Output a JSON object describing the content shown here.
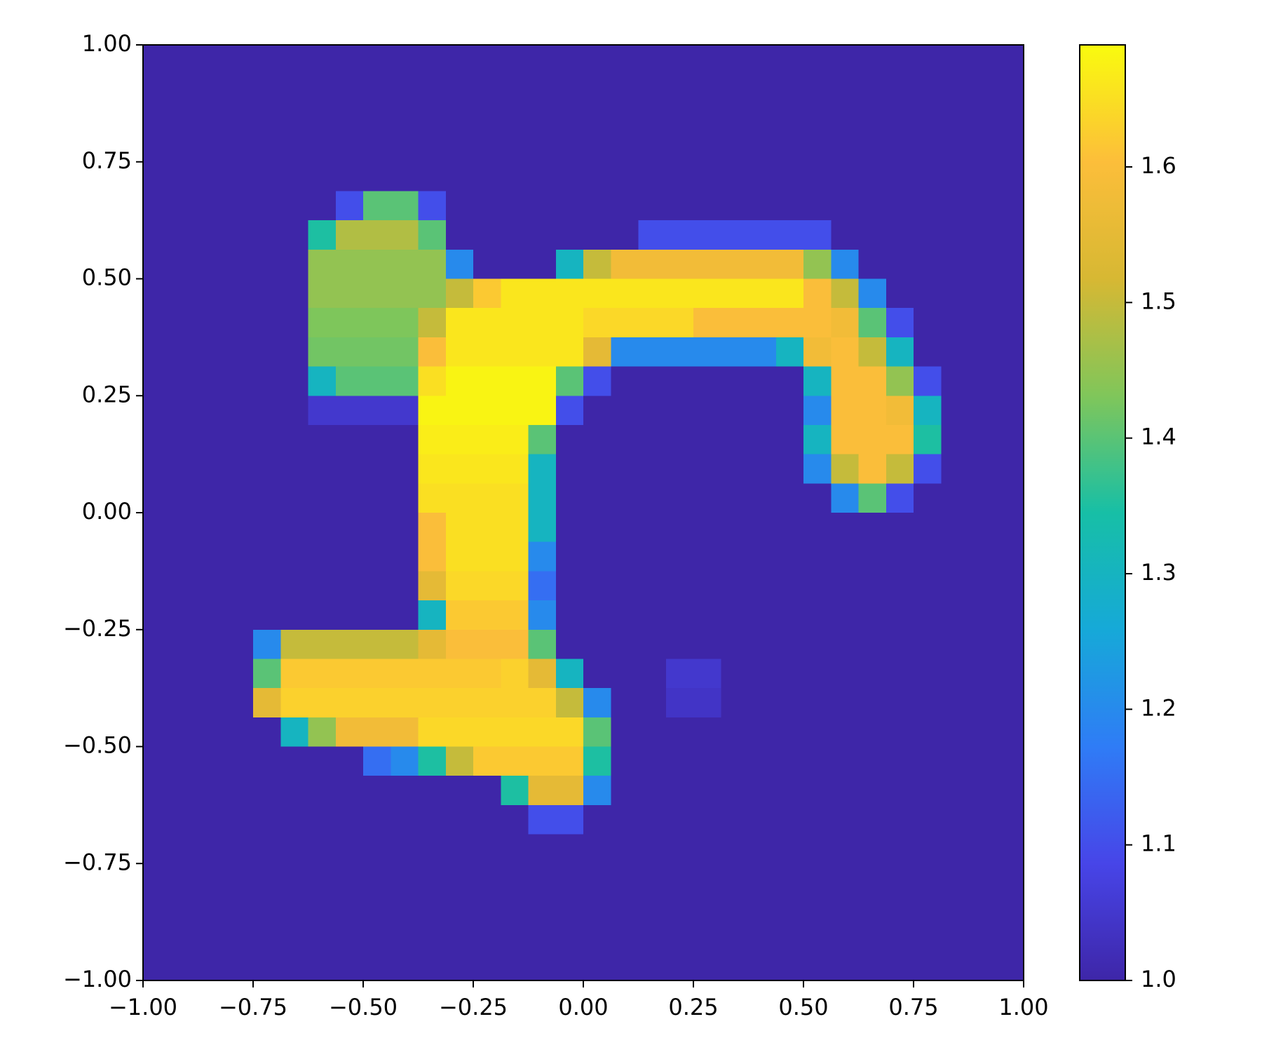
{
  "chart_data": {
    "type": "heatmap",
    "xlim": [
      -1,
      1
    ],
    "ylim": [
      -1,
      1
    ],
    "xticks": [
      {
        "value": -1,
        "label": "−1.00"
      },
      {
        "value": -0.75,
        "label": "−0.75"
      },
      {
        "value": -0.5,
        "label": "−0.50"
      },
      {
        "value": -0.25,
        "label": "−0.25"
      },
      {
        "value": 0,
        "label": "0.00"
      },
      {
        "value": 0.25,
        "label": "0.25"
      },
      {
        "value": 0.5,
        "label": "0.50"
      },
      {
        "value": 0.75,
        "label": "0.75"
      },
      {
        "value": 1,
        "label": "1.00"
      }
    ],
    "yticks": [
      {
        "value": -1,
        "label": "−1.00"
      },
      {
        "value": -0.75,
        "label": "−0.75"
      },
      {
        "value": -0.5,
        "label": "−0.50"
      },
      {
        "value": -0.25,
        "label": "−0.25"
      },
      {
        "value": 0,
        "label": "0.00"
      },
      {
        "value": 0.25,
        "label": "0.25"
      },
      {
        "value": 0.5,
        "label": "0.50"
      },
      {
        "value": 0.75,
        "label": "0.75"
      },
      {
        "value": 1,
        "label": "1.00"
      }
    ],
    "zlim": [
      1,
      1.69
    ],
    "cticks": [
      {
        "value": 1,
        "label": "1.0"
      },
      1.1,
      1.2,
      1.3,
      1.4,
      1.5,
      1.6
    ],
    "colormap": [
      "#3e26a8",
      "#4745e8",
      "#2f7cf6",
      "#16a9d8",
      "#17bfa6",
      "#80c65a",
      "#d7b833",
      "#fcbe3a",
      "#f9fb0e"
    ],
    "z": [
      [
        1,
        1,
        1,
        1,
        1,
        1,
        1,
        1,
        1,
        1,
        1,
        1,
        1,
        1,
        1,
        1,
        1,
        1,
        1,
        1,
        1,
        1,
        1,
        1,
        1,
        1,
        1,
        1,
        1,
        1,
        1,
        1
      ],
      [
        1,
        1,
        1,
        1,
        1,
        1,
        1,
        1,
        1,
        1,
        1,
        1,
        1,
        1,
        1,
        1,
        1,
        1,
        1,
        1,
        1,
        1,
        1,
        1,
        1,
        1,
        1,
        1,
        1,
        1,
        1,
        1
      ],
      [
        1,
        1,
        1,
        1,
        1,
        1,
        1,
        1,
        1,
        1,
        1,
        1,
        1,
        1,
        1,
        1,
        1,
        1,
        1,
        1,
        1,
        1,
        1,
        1,
        1,
        1,
        1,
        1,
        1,
        1,
        1,
        1
      ],
      [
        1,
        1,
        1,
        1,
        1,
        1,
        1,
        1,
        1,
        1,
        1,
        1,
        1,
        1,
        1,
        1,
        1,
        1,
        1,
        1,
        1,
        1,
        1,
        1,
        1,
        1,
        1,
        1,
        1,
        1,
        1,
        1
      ],
      [
        1,
        1,
        1,
        1,
        1,
        1,
        1,
        1,
        1,
        1,
        1,
        1,
        1,
        1,
        1,
        1,
        1,
        1,
        1,
        1,
        1,
        1,
        1,
        1,
        1,
        1,
        1,
        1,
        1,
        1,
        1,
        1
      ],
      [
        1,
        1,
        1,
        1,
        1,
        1,
        1,
        1.1,
        1.4,
        1.4,
        1.1,
        1,
        1,
        1,
        1,
        1,
        1,
        1,
        1,
        1,
        1,
        1,
        1,
        1,
        1,
        1,
        1,
        1,
        1,
        1,
        1,
        1
      ],
      [
        1,
        1,
        1,
        1,
        1,
        1,
        1.35,
        1.48,
        1.48,
        1.48,
        1.4,
        1,
        1,
        1,
        1,
        1,
        1,
        1,
        1.1,
        1.1,
        1.1,
        1.1,
        1.1,
        1.1,
        1.1,
        1,
        1,
        1,
        1,
        1,
        1,
        1
      ],
      [
        1,
        1,
        1,
        1,
        1,
        1,
        1.45,
        1.45,
        1.45,
        1.45,
        1.45,
        1.2,
        1,
        1,
        1,
        1.3,
        1.5,
        1.58,
        1.58,
        1.58,
        1.58,
        1.58,
        1.58,
        1.58,
        1.45,
        1.2,
        1,
        1,
        1,
        1,
        1,
        1
      ],
      [
        1,
        1,
        1,
        1,
        1,
        1,
        1.45,
        1.45,
        1.45,
        1.45,
        1.45,
        1.5,
        1.62,
        1.66,
        1.66,
        1.66,
        1.66,
        1.66,
        1.66,
        1.66,
        1.66,
        1.66,
        1.66,
        1.66,
        1.6,
        1.5,
        1.2,
        1,
        1,
        1,
        1,
        1
      ],
      [
        1,
        1,
        1,
        1,
        1,
        1,
        1.43,
        1.43,
        1.43,
        1.43,
        1.5,
        1.66,
        1.66,
        1.66,
        1.66,
        1.66,
        1.64,
        1.64,
        1.64,
        1.64,
        1.6,
        1.6,
        1.6,
        1.6,
        1.6,
        1.58,
        1.4,
        1.1,
        1,
        1,
        1,
        1
      ],
      [
        1,
        1,
        1,
        1,
        1,
        1,
        1.42,
        1.42,
        1.42,
        1.42,
        1.6,
        1.66,
        1.66,
        1.66,
        1.66,
        1.66,
        1.55,
        1.2,
        1.2,
        1.2,
        1.2,
        1.2,
        1.2,
        1.3,
        1.58,
        1.6,
        1.5,
        1.3,
        1,
        1,
        1,
        1
      ],
      [
        1,
        1,
        1,
        1,
        1,
        1,
        1.3,
        1.4,
        1.4,
        1.4,
        1.65,
        1.68,
        1.68,
        1.68,
        1.68,
        1.4,
        1.1,
        1,
        1,
        1,
        1,
        1,
        1,
        1,
        1.3,
        1.6,
        1.6,
        1.45,
        1.1,
        1,
        1,
        1
      ],
      [
        1,
        1,
        1,
        1,
        1,
        1,
        1.05,
        1.05,
        1.05,
        1.05,
        1.68,
        1.68,
        1.68,
        1.68,
        1.68,
        1.1,
        1,
        1,
        1,
        1,
        1,
        1,
        1,
        1,
        1.2,
        1.6,
        1.6,
        1.58,
        1.3,
        1,
        1,
        1
      ],
      [
        1,
        1,
        1,
        1,
        1,
        1,
        1,
        1,
        1,
        1,
        1.67,
        1.67,
        1.67,
        1.67,
        1.4,
        1,
        1,
        1,
        1,
        1,
        1,
        1,
        1,
        1,
        1.3,
        1.6,
        1.6,
        1.6,
        1.35,
        1,
        1,
        1
      ],
      [
        1,
        1,
        1,
        1,
        1,
        1,
        1,
        1,
        1,
        1,
        1.66,
        1.66,
        1.66,
        1.66,
        1.3,
        1,
        1,
        1,
        1,
        1,
        1,
        1,
        1,
        1,
        1.2,
        1.5,
        1.6,
        1.5,
        1.1,
        1,
        1,
        1
      ],
      [
        1,
        1,
        1,
        1,
        1,
        1,
        1,
        1,
        1,
        1,
        1.65,
        1.65,
        1.65,
        1.65,
        1.3,
        1,
        1,
        1,
        1,
        1,
        1,
        1,
        1,
        1,
        1,
        1.2,
        1.4,
        1.1,
        1,
        1,
        1,
        1
      ],
      [
        1,
        1,
        1,
        1,
        1,
        1,
        1,
        1,
        1,
        1,
        1.6,
        1.65,
        1.65,
        1.65,
        1.3,
        1,
        1,
        1,
        1,
        1,
        1,
        1,
        1,
        1,
        1,
        1,
        1,
        1,
        1,
        1,
        1,
        1
      ],
      [
        1,
        1,
        1,
        1,
        1,
        1,
        1,
        1,
        1,
        1,
        1.6,
        1.65,
        1.65,
        1.65,
        1.2,
        1,
        1,
        1,
        1,
        1,
        1,
        1,
        1,
        1,
        1,
        1,
        1,
        1,
        1,
        1,
        1,
        1
      ],
      [
        1,
        1,
        1,
        1,
        1,
        1,
        1,
        1,
        1,
        1,
        1.55,
        1.64,
        1.64,
        1.64,
        1.15,
        1,
        1,
        1,
        1,
        1,
        1,
        1,
        1,
        1,
        1,
        1,
        1,
        1,
        1,
        1,
        1,
        1
      ],
      [
        1,
        1,
        1,
        1,
        1,
        1,
        1,
        1,
        1,
        1,
        1.3,
        1.62,
        1.62,
        1.62,
        1.2,
        1,
        1,
        1,
        1,
        1,
        1,
        1,
        1,
        1,
        1,
        1,
        1,
        1,
        1,
        1,
        1,
        1
      ],
      [
        1,
        1,
        1,
        1,
        1.2,
        1.5,
        1.5,
        1.5,
        1.5,
        1.5,
        1.55,
        1.6,
        1.6,
        1.6,
        1.4,
        1,
        1,
        1,
        1,
        1,
        1,
        1,
        1,
        1,
        1,
        1,
        1,
        1,
        1,
        1,
        1,
        1
      ],
      [
        1,
        1,
        1,
        1,
        1.4,
        1.62,
        1.62,
        1.62,
        1.62,
        1.62,
        1.62,
        1.62,
        1.62,
        1.63,
        1.55,
        1.3,
        1,
        1,
        1,
        1.05,
        1.05,
        1,
        1,
        1,
        1,
        1,
        1,
        1,
        1,
        1,
        1,
        1
      ],
      [
        1,
        1,
        1,
        1,
        1.55,
        1.63,
        1.63,
        1.63,
        1.63,
        1.63,
        1.63,
        1.63,
        1.63,
        1.63,
        1.63,
        1.5,
        1.2,
        1,
        1,
        1.04,
        1.04,
        1,
        1,
        1,
        1,
        1,
        1,
        1,
        1,
        1,
        1,
        1
      ],
      [
        1,
        1,
        1,
        1,
        1,
        1.3,
        1.45,
        1.58,
        1.58,
        1.58,
        1.64,
        1.64,
        1.64,
        1.64,
        1.64,
        1.64,
        1.4,
        1,
        1,
        1,
        1,
        1,
        1,
        1,
        1,
        1,
        1,
        1,
        1,
        1,
        1,
        1
      ],
      [
        1,
        1,
        1,
        1,
        1,
        1,
        1,
        1,
        1.15,
        1.2,
        1.35,
        1.5,
        1.62,
        1.62,
        1.62,
        1.62,
        1.35,
        1,
        1,
        1,
        1,
        1,
        1,
        1,
        1,
        1,
        1,
        1,
        1,
        1,
        1,
        1
      ],
      [
        1,
        1,
        1,
        1,
        1,
        1,
        1,
        1,
        1,
        1,
        1,
        1,
        1,
        1.35,
        1.55,
        1.55,
        1.2,
        1,
        1,
        1,
        1,
        1,
        1,
        1,
        1,
        1,
        1,
        1,
        1,
        1,
        1,
        1
      ],
      [
        1,
        1,
        1,
        1,
        1,
        1,
        1,
        1,
        1,
        1,
        1,
        1,
        1,
        1,
        1.1,
        1.1,
        1,
        1,
        1,
        1,
        1,
        1,
        1,
        1,
        1,
        1,
        1,
        1,
        1,
        1,
        1,
        1
      ],
      [
        1,
        1,
        1,
        1,
        1,
        1,
        1,
        1,
        1,
        1,
        1,
        1,
        1,
        1,
        1,
        1,
        1,
        1,
        1,
        1,
        1,
        1,
        1,
        1,
        1,
        1,
        1,
        1,
        1,
        1,
        1,
        1
      ],
      [
        1,
        1,
        1,
        1,
        1,
        1,
        1,
        1,
        1,
        1,
        1,
        1,
        1,
        1,
        1,
        1,
        1,
        1,
        1,
        1,
        1,
        1,
        1,
        1,
        1,
        1,
        1,
        1,
        1,
        1,
        1,
        1
      ],
      [
        1,
        1,
        1,
        1,
        1,
        1,
        1,
        1,
        1,
        1,
        1,
        1,
        1,
        1,
        1,
        1,
        1,
        1,
        1,
        1,
        1,
        1,
        1,
        1,
        1,
        1,
        1,
        1,
        1,
        1,
        1,
        1
      ],
      [
        1,
        1,
        1,
        1,
        1,
        1,
        1,
        1,
        1,
        1,
        1,
        1,
        1,
        1,
        1,
        1,
        1,
        1,
        1,
        1,
        1,
        1,
        1,
        1,
        1,
        1,
        1,
        1,
        1,
        1,
        1,
        1
      ],
      [
        1,
        1,
        1,
        1,
        1,
        1,
        1,
        1,
        1,
        1,
        1,
        1,
        1,
        1,
        1,
        1,
        1,
        1,
        1,
        1,
        1,
        1,
        1,
        1,
        1,
        1,
        1,
        1,
        1,
        1,
        1,
        1
      ]
    ]
  }
}
